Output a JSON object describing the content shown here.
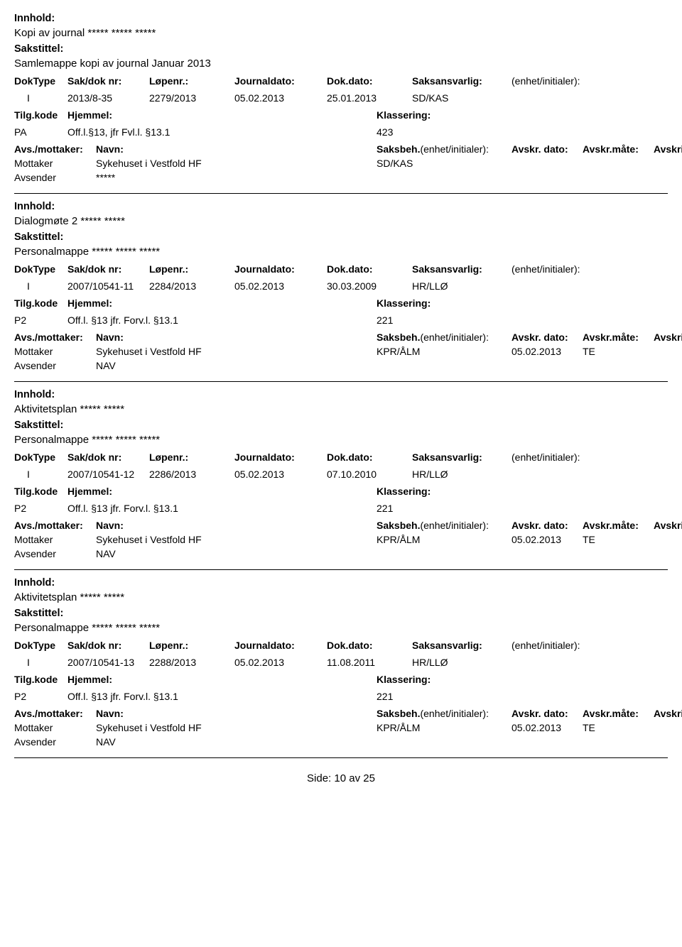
{
  "labels": {
    "innhold": "Innhold:",
    "sakstittel": "Sakstittel:",
    "doktype": "DokType",
    "sakdok": "Sak/dok nr:",
    "lopenr": "Løpenr.:",
    "journaldato": "Journaldato:",
    "dokdato": "Dok.dato:",
    "saksansvarlig": "Saksansvarlig:",
    "enhet": "(enhet/initialer):",
    "tilgkode": "Tilg.kode",
    "hjemmel": "Hjemmel:",
    "klassering": "Klassering:",
    "avsmottaker": "Avs./mottaker:",
    "navn": "Navn:",
    "saksbeh": "Saksbeh.",
    "saksbeh_enhet": "(enhet/initialer):",
    "avskrdato": "Avskr. dato:",
    "avskrmate": "Avskr.måte:",
    "avskrivlnr": "Avskriv lnr.:",
    "mottaker": "Mottaker",
    "avsender": "Avsender",
    "side": "Side:",
    "av": "av"
  },
  "entries": [
    {
      "innhold": "Kopi av journal ***** ***** *****",
      "sakstittel": "Samlemappe kopi av journal Januar 2013",
      "doktype": "I",
      "sakdok": "2013/8-35",
      "lopenr": "2279/2013",
      "journaldato": "05.02.2013",
      "dokdato": "25.01.2013",
      "saksansvarlig": "SD/KAS",
      "tilgkode": "PA",
      "hjemmel": "Off.l.§13, jfr Fvl.l. §13.1",
      "klassering": "423",
      "mottaker_navn": "Sykehuset i Vestfold HF",
      "saksbeh": "SD/KAS",
      "avskrdato": "",
      "avskrmate": "",
      "avsender_navn": "*****"
    },
    {
      "innhold": "Dialogmøte 2 ***** *****",
      "sakstittel": "Personalmappe ***** ***** *****",
      "doktype": "I",
      "sakdok": "2007/10541-11",
      "lopenr": "2284/2013",
      "journaldato": "05.02.2013",
      "dokdato": "30.03.2009",
      "saksansvarlig": "HR/LLØ",
      "tilgkode": "P2",
      "hjemmel": "Off.l. §13  jfr. Forv.l. §13.1",
      "klassering": "221",
      "mottaker_navn": "Sykehuset i Vestfold HF",
      "saksbeh": "KPR/ÅLM",
      "avskrdato": "05.02.2013",
      "avskrmate": "TE",
      "avsender_navn": "NAV"
    },
    {
      "innhold": "Aktivitetsplan ***** *****",
      "sakstittel": "Personalmappe ***** ***** *****",
      "doktype": "I",
      "sakdok": "2007/10541-12",
      "lopenr": "2286/2013",
      "journaldato": "05.02.2013",
      "dokdato": "07.10.2010",
      "saksansvarlig": "HR/LLØ",
      "tilgkode": "P2",
      "hjemmel": "Off.l. §13  jfr. Forv.l. §13.1",
      "klassering": "221",
      "mottaker_navn": "Sykehuset i Vestfold HF",
      "saksbeh": "KPR/ÅLM",
      "avskrdato": "05.02.2013",
      "avskrmate": "TE",
      "avsender_navn": "NAV"
    },
    {
      "innhold": "Aktivitetsplan ***** *****",
      "sakstittel": "Personalmappe ***** ***** *****",
      "doktype": "I",
      "sakdok": "2007/10541-13",
      "lopenr": "2288/2013",
      "journaldato": "05.02.2013",
      "dokdato": "11.08.2011",
      "saksansvarlig": "HR/LLØ",
      "tilgkode": "P2",
      "hjemmel": "Off.l. §13  jfr. Forv.l. §13.1",
      "klassering": "221",
      "mottaker_navn": "Sykehuset i Vestfold HF",
      "saksbeh": "KPR/ÅLM",
      "avskrdato": "05.02.2013",
      "avskrmate": "TE",
      "avsender_navn": "NAV"
    }
  ],
  "page": {
    "current": "10",
    "total": "25"
  }
}
